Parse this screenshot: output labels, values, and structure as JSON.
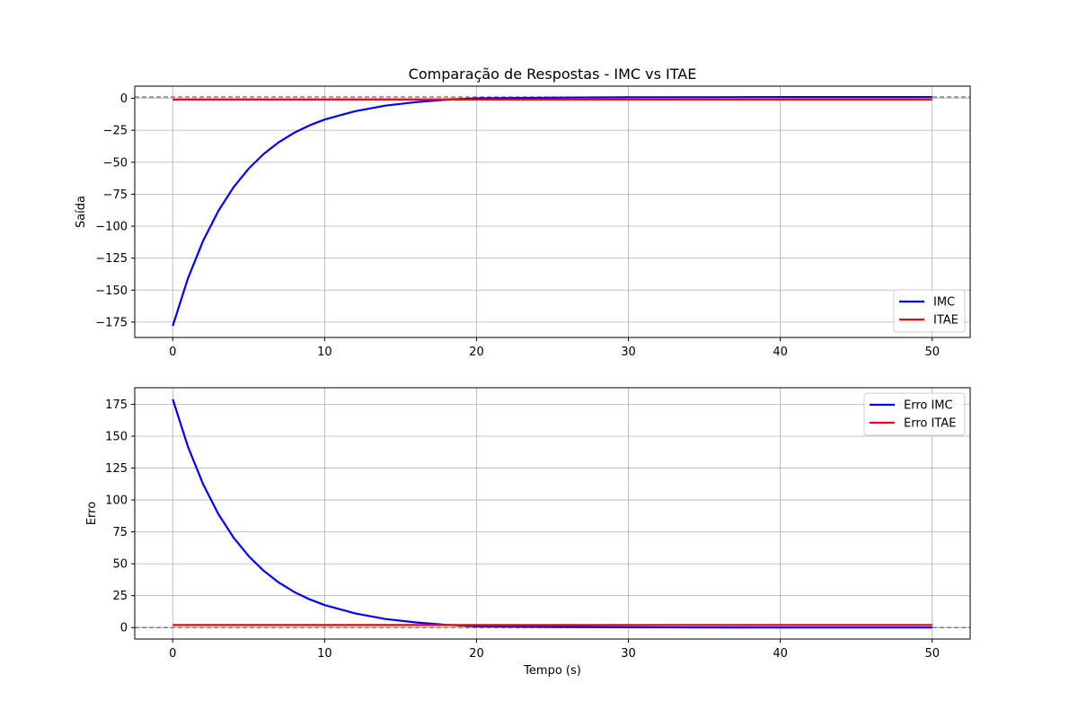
{
  "chart_data": [
    {
      "type": "line",
      "title": "Comparação de Respostas - IMC vs ITAE",
      "xlabel": "",
      "ylabel": "Saída",
      "xlim": [
        -2.5,
        52.5
      ],
      "ylim": [
        -187,
        9.5
      ],
      "xticks": [
        0,
        10,
        20,
        30,
        40,
        50
      ],
      "xtick_labels": [
        "0",
        "10",
        "20",
        "30",
        "40",
        "50"
      ],
      "yticks": [
        0,
        -25,
        -50,
        -75,
        -100,
        -125,
        -150,
        -175
      ],
      "ytick_labels": [
        "0",
        "−25",
        "−50",
        "−75",
        "−100",
        "−125",
        "−150",
        "−175"
      ],
      "grid": true,
      "legend": "lower right",
      "reference_line": {
        "y": 1,
        "style": "dashed",
        "color": "#808080"
      },
      "series": [
        {
          "name": "IMC",
          "color": "#0000ff",
          "x": [
            0,
            1,
            2,
            3,
            4,
            5,
            6,
            7,
            8,
            9,
            10,
            12,
            14,
            16,
            18,
            20,
            25,
            30,
            35,
            40,
            45,
            50
          ],
          "y": [
            -178,
            -140.8,
            -111.4,
            -88.1,
            -69.6,
            -55.0,
            -43.4,
            -34.2,
            -26.9,
            -21.2,
            -16.6,
            -10.1,
            -5.7,
            -3.0,
            -1.1,
            0.0,
            0.5,
            0.8,
            0.9,
            1.0,
            1.0,
            1.0
          ]
        },
        {
          "name": "ITAE",
          "color": "#ff0000",
          "x": [
            0,
            50
          ],
          "y": [
            -1,
            -1
          ]
        }
      ]
    },
    {
      "type": "line",
      "title": "",
      "xlabel": "Tempo (s)",
      "ylabel": "Erro",
      "xlim": [
        -2.5,
        52.5
      ],
      "ylim": [
        -9,
        188
      ],
      "xticks": [
        0,
        10,
        20,
        30,
        40,
        50
      ],
      "xtick_labels": [
        "0",
        "10",
        "20",
        "30",
        "40",
        "50"
      ],
      "yticks": [
        0,
        25,
        50,
        75,
        100,
        125,
        150,
        175
      ],
      "ytick_labels": [
        "0",
        "25",
        "50",
        "75",
        "100",
        "125",
        "150",
        "175"
      ],
      "grid": true,
      "legend": "upper right",
      "reference_line": {
        "y": 0,
        "style": "dashed",
        "color": "#808080"
      },
      "series": [
        {
          "name": "Erro IMC",
          "color": "#0000ff",
          "x": [
            0,
            1,
            2,
            3,
            4,
            5,
            6,
            7,
            8,
            9,
            10,
            12,
            14,
            16,
            18,
            20,
            25,
            30,
            35,
            40,
            45,
            50
          ],
          "y": [
            179,
            141.8,
            112.4,
            89.1,
            70.6,
            56.0,
            44.4,
            35.2,
            27.9,
            22.2,
            17.6,
            11.1,
            6.7,
            4.0,
            2.1,
            1.0,
            0.5,
            0.2,
            0.1,
            0.0,
            0.0,
            0.0
          ]
        },
        {
          "name": "Erro ITAE",
          "color": "#ff0000",
          "x": [
            0,
            50
          ],
          "y": [
            2,
            2
          ]
        }
      ]
    }
  ]
}
